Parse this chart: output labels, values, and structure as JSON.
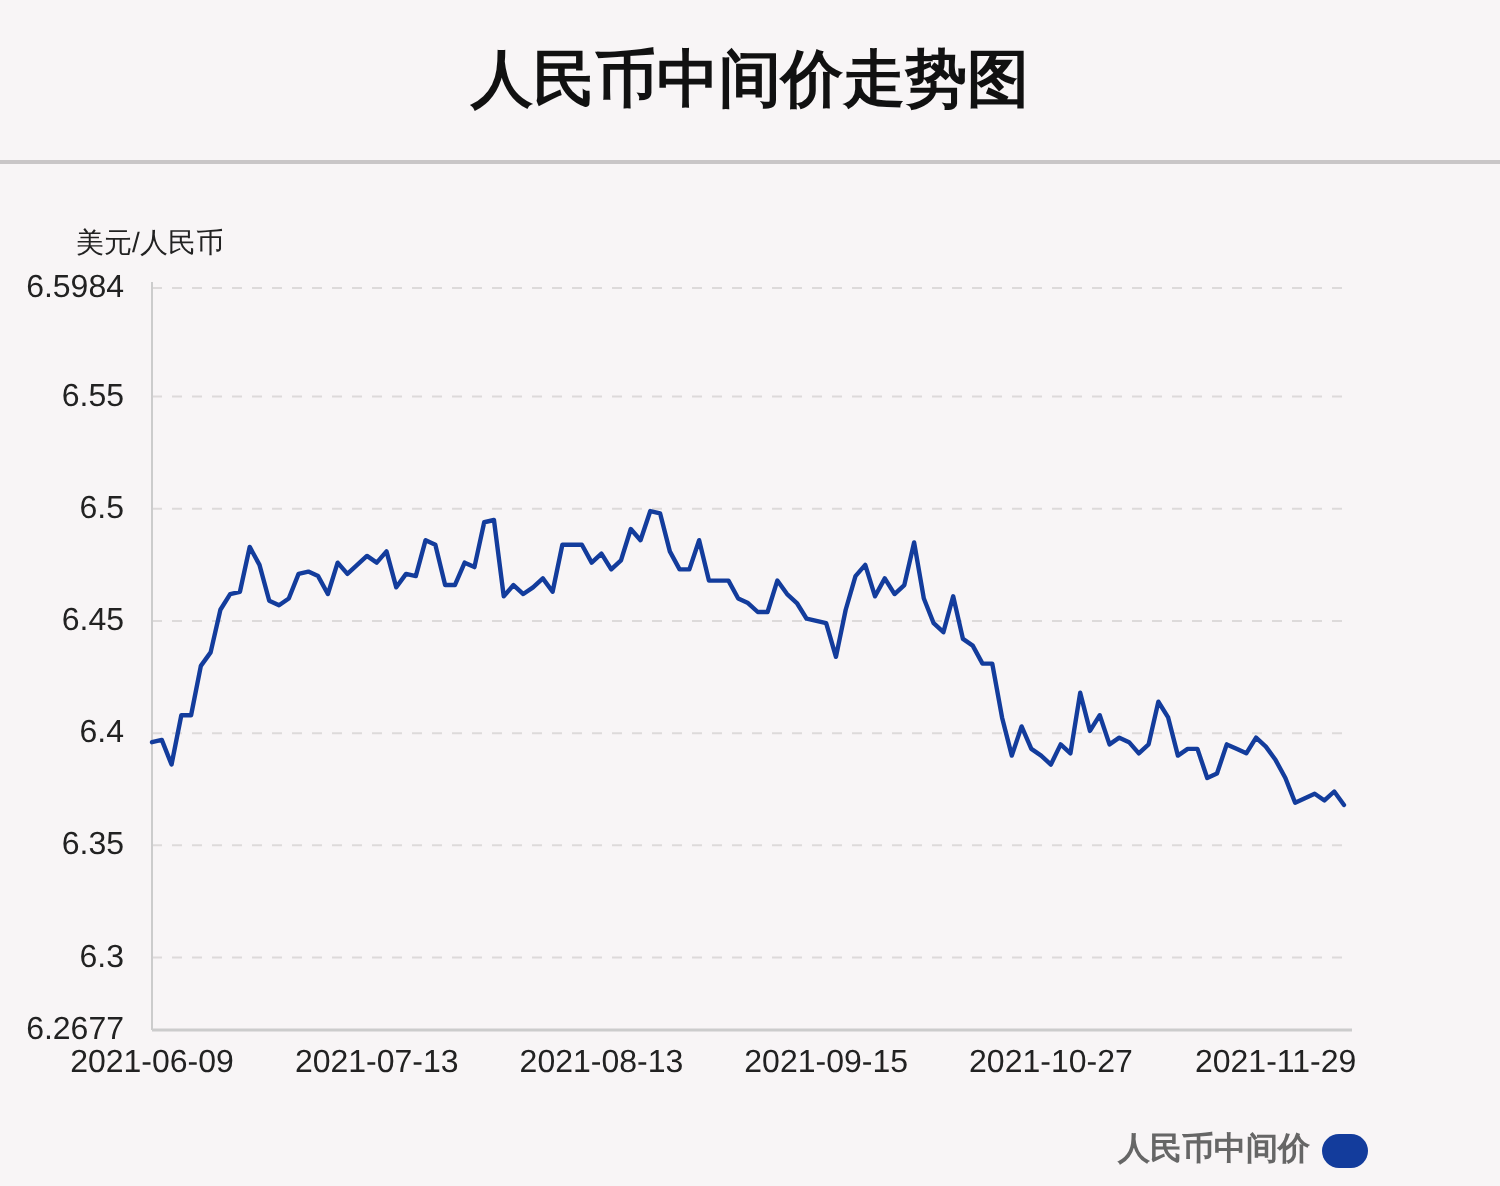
{
  "chart_data": {
    "type": "line",
    "title": "人民币中间价走势图",
    "ylabel": "美元/人民币",
    "categories": [
      "2021-06-09",
      null,
      null,
      null,
      null,
      null,
      null,
      null,
      null,
      null,
      null,
      null,
      null,
      null,
      null,
      null,
      null,
      null,
      null,
      null,
      null,
      null,
      null,
      "2021-07-13",
      null,
      null,
      null,
      null,
      null,
      null,
      null,
      null,
      null,
      null,
      null,
      null,
      null,
      null,
      null,
      null,
      null,
      null,
      null,
      null,
      null,
      null,
      "2021-08-13",
      null,
      null,
      null,
      null,
      null,
      null,
      null,
      null,
      null,
      null,
      null,
      null,
      null,
      null,
      null,
      null,
      null,
      null,
      null,
      null,
      null,
      null,
      "2021-09-15",
      null,
      null,
      null,
      null,
      null,
      null,
      null,
      null,
      null,
      null,
      null,
      null,
      null,
      null,
      null,
      null,
      null,
      null,
      null,
      null,
      null,
      null,
      "2021-10-27",
      null,
      null,
      null,
      null,
      null,
      null,
      null,
      null,
      null,
      null,
      null,
      null,
      null,
      null,
      null,
      null,
      null,
      null,
      null,
      null,
      null,
      null,
      "2021-11-29",
      null,
      null,
      null,
      null,
      null,
      null,
      null
    ],
    "series": [
      {
        "name": "人民币中间价",
        "color": "#133c9c",
        "values": [
          6.396,
          6.397,
          6.386,
          6.408,
          6.408,
          6.43,
          6.436,
          6.455,
          6.462,
          6.463,
          6.483,
          6.475,
          6.459,
          6.457,
          6.46,
          6.471,
          6.472,
          6.47,
          6.462,
          6.476,
          6.471,
          6.475,
          6.479,
          6.476,
          6.481,
          6.465,
          6.471,
          6.47,
          6.486,
          6.484,
          6.466,
          6.466,
          6.476,
          6.474,
          6.494,
          6.495,
          6.461,
          6.466,
          6.462,
          6.465,
          6.469,
          6.463,
          6.484,
          6.484,
          6.484,
          6.476,
          6.48,
          6.473,
          6.477,
          6.491,
          6.486,
          6.499,
          6.498,
          6.481,
          6.473,
          6.473,
          6.486,
          6.468,
          6.468,
          6.468,
          6.46,
          6.458,
          6.454,
          6.454,
          6.468,
          6.462,
          6.458,
          6.451,
          6.45,
          6.449,
          6.434,
          6.455,
          6.47,
          6.475,
          6.461,
          6.469,
          6.462,
          6.466,
          6.485,
          6.46,
          6.449,
          6.445,
          6.461,
          6.442,
          6.439,
          6.431,
          6.431,
          6.407,
          6.39,
          6.403,
          6.393,
          6.39,
          6.386,
          6.395,
          6.391,
          6.418,
          6.401,
          6.408,
          6.395,
          6.398,
          6.396,
          6.391,
          6.395,
          6.414,
          6.407,
          6.39,
          6.393,
          6.393,
          6.38,
          6.382,
          6.395,
          6.393,
          6.391,
          6.398,
          6.394,
          6.388,
          6.38,
          6.369,
          6.371,
          6.373,
          6.37,
          6.374,
          6.368
        ]
      }
    ],
    "ylim": [
      6.2677,
      6.5984
    ],
    "yticks": [
      6.2677,
      6.3,
      6.35,
      6.4,
      6.45,
      6.5,
      6.55,
      6.5984
    ],
    "grid": "y",
    "legend": "bottom right"
  }
}
